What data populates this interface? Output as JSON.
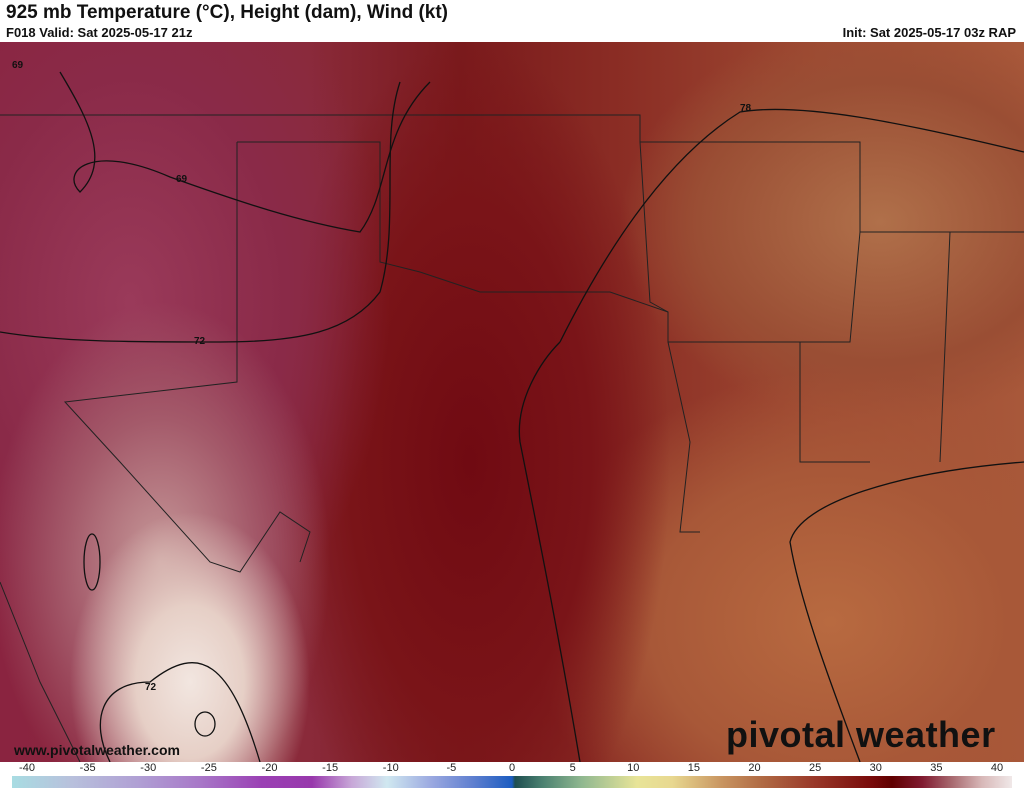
{
  "header": {
    "title": "925 mb Temperature (°C), Height (dam), Wind (kt)",
    "valid": "F018 Valid: Sat 2025-05-17 21z",
    "init": "Init: Sat 2025-05-17 03z RAP"
  },
  "map": {
    "contour_labels": [
      "69",
      "69",
      "72",
      "72",
      "78"
    ],
    "website": "www.pivotalweather.com",
    "logo": "pivotal weather"
  },
  "colorbar": {
    "unit": "°C",
    "ticks": [
      "-40",
      "-35",
      "-30",
      "-25",
      "-20",
      "-15",
      "-10",
      "-5",
      "0",
      "5",
      "10",
      "15",
      "20",
      "25",
      "30",
      "35",
      "40"
    ],
    "range": [
      -40,
      40
    ]
  }
}
